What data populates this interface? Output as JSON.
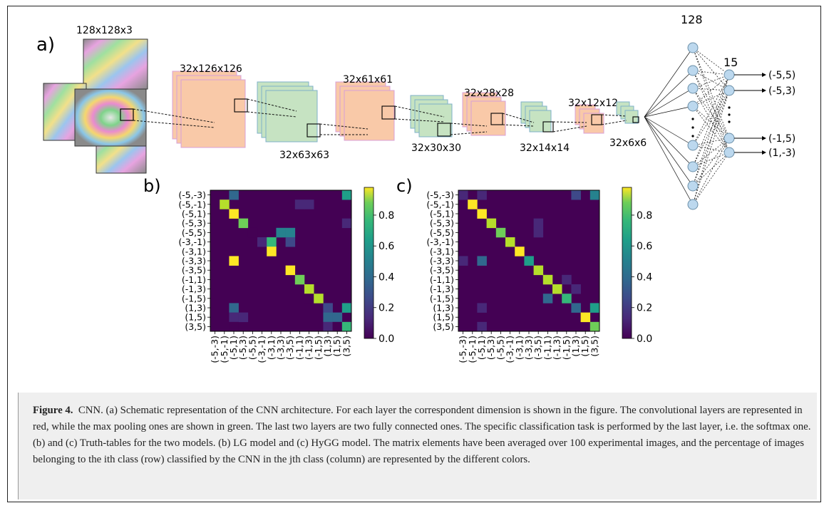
{
  "panel_labels": {
    "a": "a)",
    "b": "b)",
    "c": "c)"
  },
  "architecture": {
    "input_label": "128x128x3",
    "layers": [
      {
        "label": "32x126x126",
        "kind": "conv",
        "color": "#f9c9a8"
      },
      {
        "label": "32x63x63",
        "kind": "pool",
        "color": "#c6e3c2"
      },
      {
        "label": "32x61x61",
        "kind": "conv",
        "color": "#f9c9a8"
      },
      {
        "label": "32x30x30",
        "kind": "pool",
        "color": "#c6e3c2"
      },
      {
        "label": "32x28x28",
        "kind": "conv",
        "color": "#f9c9a8"
      },
      {
        "label": "32x14x14",
        "kind": "pool",
        "color": "#c6e3c2"
      },
      {
        "label": "32x12x12",
        "kind": "conv",
        "color": "#f9c9a8"
      },
      {
        "label": "32x6x6",
        "kind": "pool",
        "color": "#c6e3c2"
      }
    ],
    "dense_label": "128",
    "output_label": "15",
    "outputs": [
      "(-5,5)",
      "(-5,3)",
      "(-1,5)",
      "(1,-3)"
    ],
    "node_color": "#bcd8ee"
  },
  "chart_data": [
    {
      "type": "heatmap",
      "panel": "b)",
      "labels": [
        "(-5,-3)",
        "(-5,-1)",
        "(-5,1)",
        "(-5,3)",
        "(-5,5)",
        "(-3,-1)",
        "(-3,1)",
        "(-3,3)",
        "(-3,5)",
        "(-1,1)",
        "(-1,3)",
        "(-1,5)",
        "(1,3)",
        "(1,5)",
        "(3,5)"
      ],
      "colorbar": {
        "min": 0.0,
        "max": 0.98,
        "ticks": [
          "0.0",
          "0.2",
          "0.4",
          "0.6",
          "0.8"
        ]
      },
      "matrix": [
        [
          0.05,
          0,
          0.35,
          0,
          0,
          0,
          0,
          0,
          0,
          0,
          0,
          0,
          0,
          0,
          0.5
        ],
        [
          0,
          0.85,
          0,
          0,
          0,
          0,
          0,
          0,
          0,
          0.1,
          0.15,
          0,
          0,
          0,
          0
        ],
        [
          0,
          0,
          0.95,
          0,
          0,
          0,
          0,
          0,
          0,
          0,
          0,
          0,
          0,
          0,
          0
        ],
        [
          0,
          0,
          0,
          0.8,
          0,
          0,
          0,
          0,
          0,
          0,
          0,
          0,
          0,
          0,
          0.15
        ],
        [
          0,
          0,
          0,
          0,
          0.05,
          0,
          0,
          0.4,
          0.45,
          0,
          0,
          0,
          0,
          0,
          0
        ],
        [
          0,
          0,
          0,
          0,
          0,
          0.1,
          0.7,
          0,
          0.2,
          0,
          0,
          0,
          0,
          0,
          0
        ],
        [
          0,
          0,
          0,
          0,
          0,
          0,
          0.95,
          0,
          0,
          0,
          0,
          0,
          0,
          0,
          0
        ],
        [
          0,
          0,
          0.95,
          0,
          0,
          0,
          0,
          0,
          0,
          0,
          0,
          0,
          0,
          0,
          0
        ],
        [
          0,
          0,
          0,
          0,
          0,
          0,
          0,
          0,
          0.95,
          0,
          0,
          0,
          0,
          0,
          0
        ],
        [
          0,
          0,
          0,
          0,
          0,
          0,
          0,
          0,
          0,
          0.75,
          0,
          0,
          0,
          0,
          0
        ],
        [
          0,
          0,
          0,
          0,
          0,
          0,
          0,
          0,
          0,
          0,
          0.9,
          0,
          0,
          0,
          0
        ],
        [
          0,
          0,
          0,
          0,
          0,
          0,
          0,
          0,
          0,
          0,
          0.05,
          0.9,
          0,
          0,
          0
        ],
        [
          0,
          0,
          0.3,
          0,
          0,
          0,
          0,
          0,
          0,
          0,
          0,
          0,
          0.2,
          0,
          0.5
        ],
        [
          0,
          0,
          0.1,
          0.15,
          0,
          0,
          0,
          0,
          0,
          0,
          0,
          0,
          0.3,
          0.35,
          0
        ],
        [
          0,
          0,
          0.05,
          0,
          0,
          0,
          0,
          0,
          0,
          0,
          0,
          0,
          0.15,
          0.05,
          0.7
        ]
      ]
    },
    {
      "type": "heatmap",
      "panel": "c)",
      "labels": [
        "(-5,-3)",
        "(-5,-1)",
        "(-5,1)",
        "(-5,3)",
        "(-5,5)",
        "(-3,-1)",
        "(-3,1)",
        "(-3,3)",
        "(-3,5)",
        "(-1,1)",
        "(-1,3)",
        "(-1,5)",
        "(1,3)",
        "(1,5)",
        "(3,5)"
      ],
      "colorbar": {
        "min": 0.0,
        "max": 0.98,
        "ticks": [
          "0.0",
          "0.2",
          "0.4",
          "0.6",
          "0.8"
        ]
      },
      "matrix": [
        [
          0.15,
          0,
          0.15,
          0,
          0,
          0,
          0,
          0,
          0,
          0,
          0,
          0,
          0.25,
          0,
          0.4
        ],
        [
          0,
          0.95,
          0,
          0,
          0,
          0,
          0,
          0,
          0,
          0,
          0,
          0,
          0,
          0,
          0
        ],
        [
          0,
          0,
          0.95,
          0,
          0,
          0,
          0,
          0,
          0,
          0,
          0,
          0,
          0,
          0,
          0
        ],
        [
          0,
          0,
          0,
          0.9,
          0,
          0,
          0,
          0,
          0.1,
          0,
          0,
          0,
          0,
          0,
          0
        ],
        [
          0,
          0,
          0,
          0,
          0.8,
          0,
          0,
          0,
          0.15,
          0,
          0,
          0,
          0,
          0,
          0
        ],
        [
          0,
          0,
          0,
          0,
          0,
          0.85,
          0,
          0,
          0,
          0,
          0,
          0,
          0,
          0,
          0
        ],
        [
          0,
          0,
          0,
          0,
          0,
          0,
          0.95,
          0,
          0,
          0,
          0,
          0,
          0,
          0,
          0
        ],
        [
          0.1,
          0,
          0.3,
          0,
          0,
          0,
          0,
          0.55,
          0,
          0,
          0,
          0,
          0,
          0,
          0
        ],
        [
          0,
          0,
          0,
          0,
          0,
          0,
          0,
          0,
          0.9,
          0,
          0,
          0,
          0,
          0,
          0
        ],
        [
          0,
          0,
          0,
          0,
          0,
          0,
          0,
          0,
          0,
          0.85,
          0,
          0.1,
          0,
          0,
          0
        ],
        [
          0,
          0,
          0,
          0,
          0,
          0,
          0,
          0,
          0,
          0,
          0.85,
          0,
          0.1,
          0,
          0
        ],
        [
          0,
          0,
          0,
          0,
          0,
          0,
          0,
          0,
          0,
          0.3,
          0,
          0.7,
          0,
          0,
          0
        ],
        [
          0,
          0,
          0.15,
          0,
          0,
          0,
          0,
          0,
          0,
          0,
          0,
          0,
          0.3,
          0,
          0.55
        ],
        [
          0,
          0,
          0,
          0,
          0,
          0,
          0,
          0,
          0,
          0,
          0,
          0,
          0,
          0.95,
          0
        ],
        [
          0,
          0,
          0.1,
          0,
          0,
          0,
          0,
          0,
          0,
          0,
          0,
          0,
          0,
          0,
          0.8
        ]
      ]
    }
  ],
  "caption": {
    "figure_label": "Figure 4.",
    "text": "CNN. (a) Schematic representation of the CNN architecture. For each layer the correspondent dimension is shown in the figure. The convolutional layers are represented in red, while the max pooling ones are shown in green. The last two layers are two fully connected ones. The specific classification task is performed by the last layer, i.e. the softmax one. (b) and (c) Truth-tables for the two models. (b) LG model and (c) HyGG model. The matrix elements have been averaged over 100 experimental images, and the percentage of images belonging to the ith class (row) classified by the CNN in the jth class (column) are represented by the different colors."
  }
}
